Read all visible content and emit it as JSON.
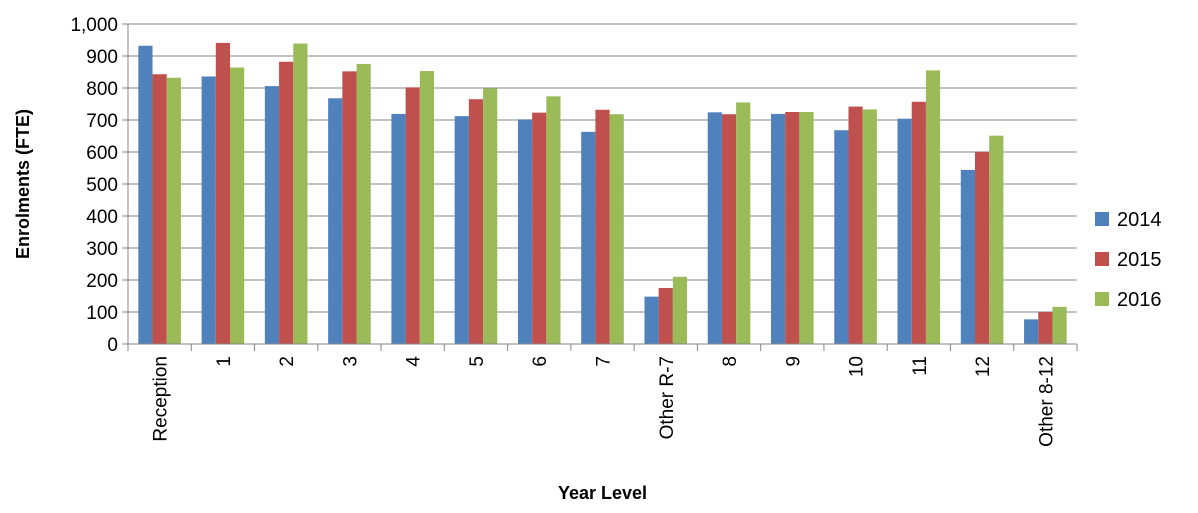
{
  "chart_data": {
    "type": "bar",
    "title": "",
    "xlabel": "Year Level",
    "ylabel": "Enrolments (FTE)",
    "ylim": [
      0,
      1000
    ],
    "ytick_step": 100,
    "ytick_labels": [
      "0",
      "100",
      "200",
      "300",
      "400",
      "500",
      "600",
      "700",
      "800",
      "900",
      "1,000"
    ],
    "grid": true,
    "legend_position": "right",
    "categories": [
      "Reception",
      "1",
      "2",
      "3",
      "4",
      "5",
      "6",
      "7",
      "Other R-7",
      "8",
      "9",
      "10",
      "11",
      "12",
      "Other 8-12"
    ],
    "series": [
      {
        "name": "2014",
        "color": "#4F81BD",
        "values": [
          932,
          836,
          806,
          768,
          719,
          712,
          702,
          663,
          148,
          724,
          719,
          668,
          704,
          544,
          77
        ]
      },
      {
        "name": "2015",
        "color": "#C0504D",
        "values": [
          843,
          941,
          882,
          852,
          802,
          765,
          723,
          732,
          175,
          718,
          725,
          742,
          757,
          601,
          100
        ]
      },
      {
        "name": "2016",
        "color": "#9BBB59",
        "values": [
          832,
          864,
          939,
          875,
          853,
          799,
          774,
          718,
          210,
          755,
          725,
          733,
          855,
          651,
          116
        ]
      }
    ]
  }
}
